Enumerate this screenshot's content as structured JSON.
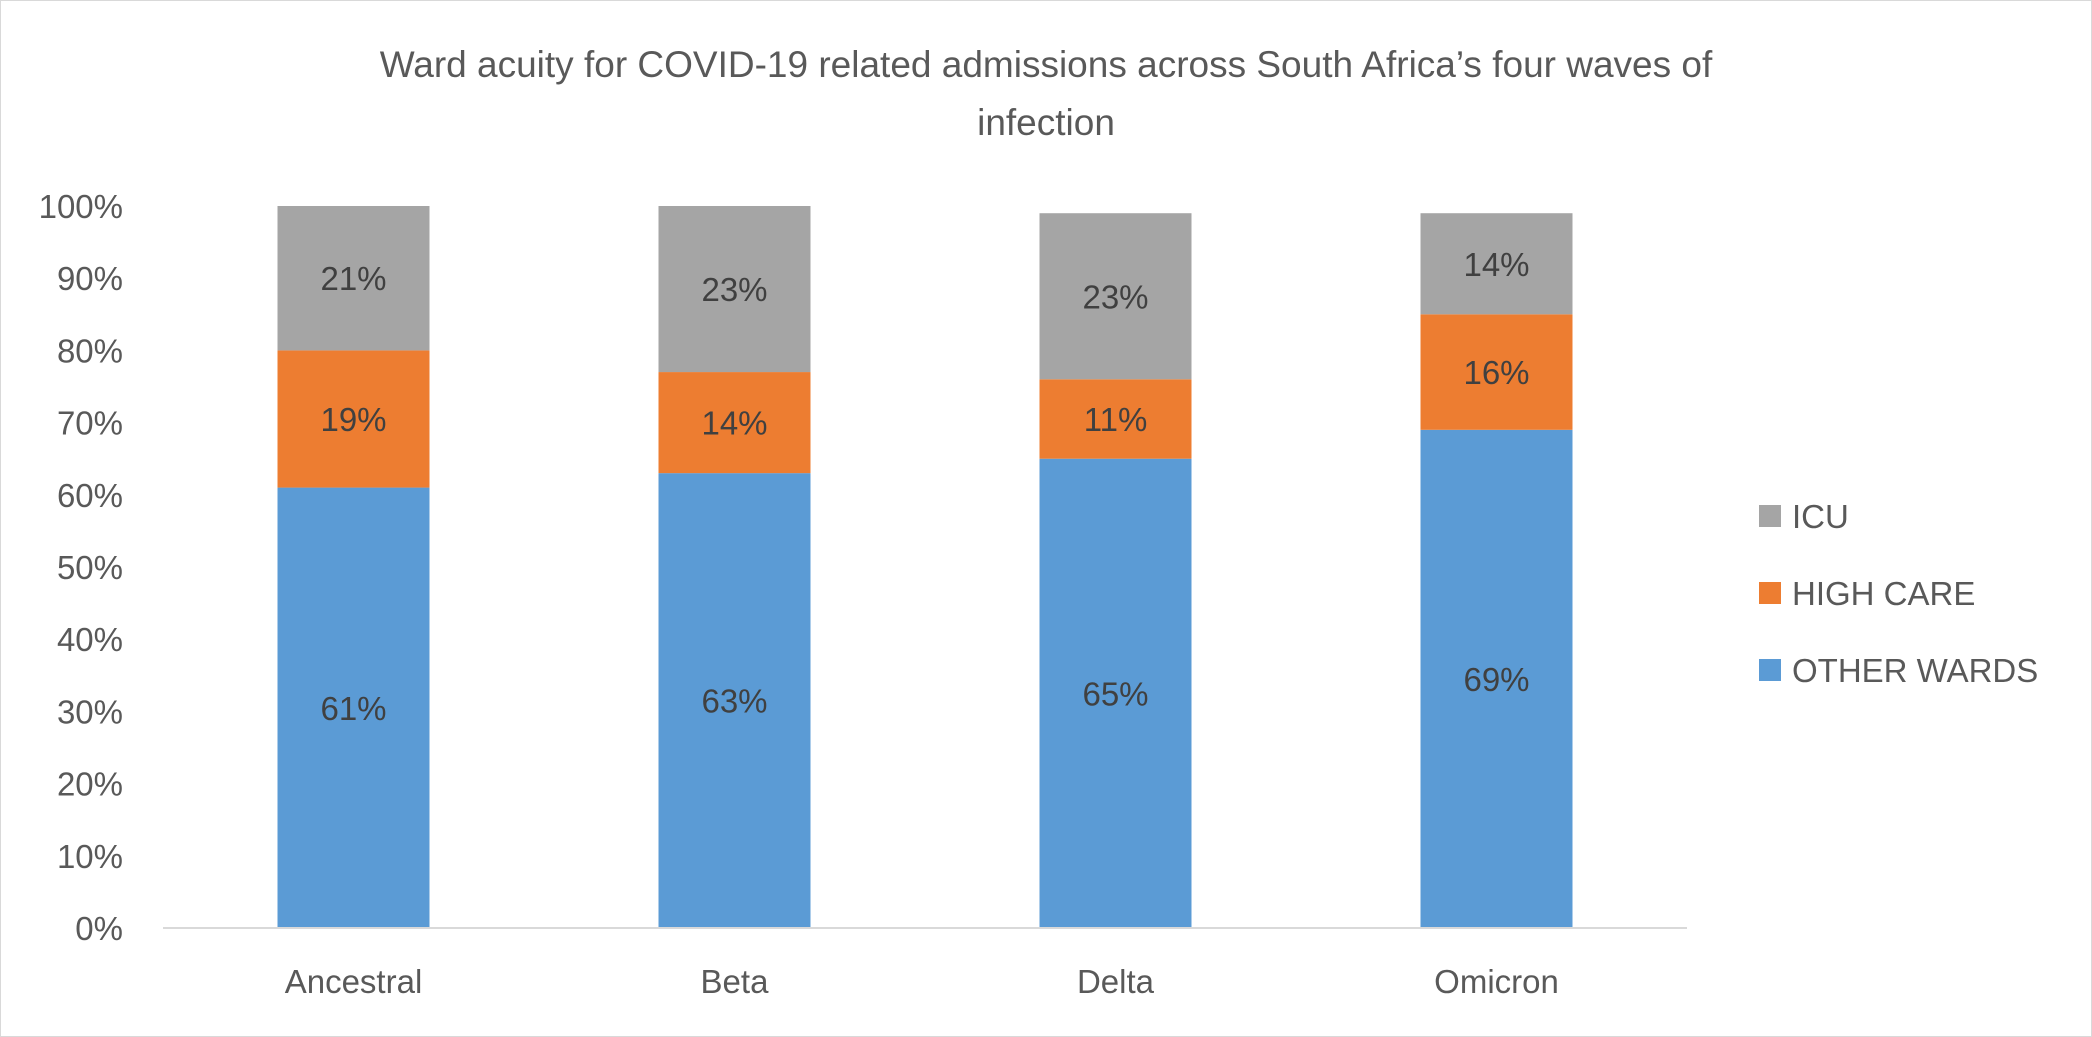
{
  "chart_data": {
    "type": "bar",
    "stacked": true,
    "title": "Ward acuity for COVID-19 related admissions across South Africa’s four waves of infection",
    "title_lines": [
      "Ward acuity for COVID-19 related admissions across South Africa’s four waves of",
      "infection"
    ],
    "categories": [
      "Ancestral",
      "Beta",
      "Delta",
      "Omicron"
    ],
    "series": [
      {
        "name": "OTHER WARDS",
        "color": "#5b9bd5",
        "values": [
          61,
          63,
          65,
          69
        ],
        "labels": [
          "61%",
          "63%",
          "65%",
          "69%"
        ]
      },
      {
        "name": "HIGH CARE",
        "color": "#ed7d31",
        "values": [
          19,
          14,
          11,
          16
        ],
        "labels": [
          "19%",
          "14%",
          "11%",
          "16%"
        ]
      },
      {
        "name": "ICU",
        "color": "#a5a5a5",
        "values": [
          21,
          23,
          23,
          14
        ],
        "labels": [
          "21%",
          "23%",
          "23%",
          "14%"
        ]
      }
    ],
    "y_ticks": [
      "0%",
      "10%",
      "20%",
      "30%",
      "40%",
      "50%",
      "60%",
      "70%",
      "80%",
      "90%",
      "100%"
    ],
    "ylim": [
      0,
      100
    ],
    "xlabel": "",
    "ylabel": "",
    "grid": false,
    "legend_position": "right",
    "legend_order": [
      "ICU",
      "HIGH CARE",
      "OTHER WARDS"
    ]
  }
}
